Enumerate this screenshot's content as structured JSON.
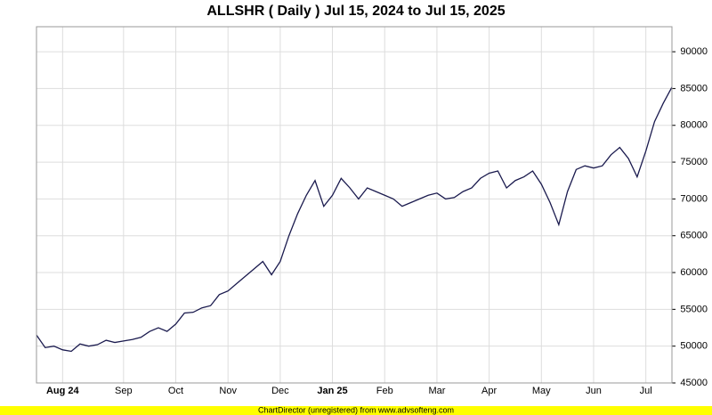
{
  "chart_data": {
    "type": "line",
    "title": "ALLSHR ( Daily ) Jul 15, 2024 to Jul 15, 2025",
    "footer": "ChartDirector (unregistered) from www.advsofteng.com",
    "categories": [
      null,
      null,
      null,
      "Aug 24",
      null,
      null,
      null,
      null,
      null,
      null,
      "Sep",
      null,
      null,
      null,
      null,
      null,
      "Oct",
      null,
      null,
      null,
      null,
      null,
      "Nov",
      null,
      null,
      null,
      null,
      null,
      "Dec",
      null,
      null,
      null,
      null,
      null,
      "Jan 25",
      null,
      null,
      null,
      null,
      null,
      "Feb",
      null,
      null,
      null,
      null,
      null,
      "Mar",
      null,
      null,
      null,
      null,
      null,
      "Apr",
      null,
      null,
      null,
      null,
      null,
      "May",
      null,
      null,
      null,
      null,
      null,
      "Jun",
      null,
      null,
      null,
      null,
      null,
      "Jul",
      null,
      null,
      null
    ],
    "series": [
      {
        "name": "ALLSHR",
        "color": "#1a1a4e",
        "values": [
          51500,
          49800,
          50000,
          49500,
          49300,
          50300,
          50000,
          50200,
          50800,
          50500,
          50700,
          50900,
          51200,
          52000,
          52500,
          52000,
          53000,
          54500,
          54600,
          55200,
          55500,
          57000,
          57500,
          58500,
          59500,
          60500,
          61500,
          59700,
          61500,
          65000,
          68000,
          70500,
          72500,
          69000,
          70500,
          72800,
          71500,
          70000,
          71500,
          71000,
          70500,
          70000,
          69000,
          69500,
          70000,
          70500,
          70800,
          70000,
          70200,
          71000,
          71500,
          72800,
          73500,
          73800,
          71500,
          72500,
          73000,
          73800,
          72000,
          69500,
          66500,
          71000,
          74000,
          74500,
          74200,
          74500,
          76000,
          77000,
          75500,
          73000,
          76500,
          80500,
          83000,
          85200
        ]
      }
    ],
    "ylim": [
      45000,
      93400
    ],
    "yticks": [
      45000,
      50000,
      55000,
      60000,
      65000,
      70000,
      75000,
      80000,
      85000,
      90000
    ],
    "grid": true
  }
}
